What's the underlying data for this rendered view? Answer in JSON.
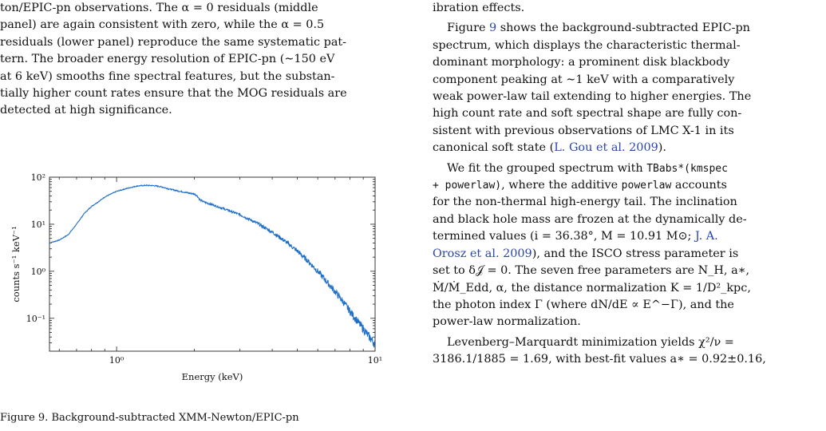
{
  "left_text": {
    "line1": "ton/EPIC-pn observations. The α = 0 residuals (middle",
    "line2": "panel) are again consistent with zero, while the α = 0.5",
    "line3": "residuals (lower panel) reproduce the same systematic pat-",
    "line4": "tern. The broader energy resolution of EPIC-pn (∼150 eV",
    "line5": "at 6 keV) smooths fine spectral features, but the substan-",
    "line6": "tially higher count rates ensure that the MOG residuals are",
    "line7": "detected at high significance."
  },
  "caption": "Figure 9. Background-subtracted XMM-Newton/EPIC-pn",
  "right_text": {
    "intro": "ibration effects.",
    "p1_l1": "Figure ",
    "p1_fig_ref": "9",
    "p1_l1b": " shows the background-subtracted EPIC-pn",
    "p1_l2": "spectrum, which displays the characteristic thermal-",
    "p1_l3": "dominant morphology: a prominent disk blackbody",
    "p1_l4": "component peaking at ∼1 keV with a comparatively",
    "p1_l5": "weak power-law tail extending to higher energies. The",
    "p1_l6": "high count rate and soft spectral shape are fully con-",
    "p1_l7": "sistent with previous observations of LMC X-1 in its",
    "p1_l8": "canonical soft state (",
    "p1_cite": "L. Gou et al. 2009",
    "p1_l8b": ").",
    "p2_l1a": "We fit the grouped spectrum with ",
    "p2_code1": "TBabs*(kmspec",
    "p2_code2": "+ powerlaw)",
    "p2_l2": ", where the additive ",
    "p2_code3": "powerlaw",
    "p2_l2b": " accounts",
    "p2_l3": "for the non-thermal high-energy tail. The inclination",
    "p2_l4": "and black hole mass are frozen at the dynamically de-",
    "p2_l5a": "termined values (i = 36.38°, M = 10.91 M⊙; ",
    "p2_cite_a": "J. A.",
    "p2_cite_b": "Orosz et al. 2009",
    "p2_l6b": "), and the ISCO stress parameter is",
    "p2_l7": "set to δ𝒥 = 0. The seven free parameters are N_H, a∗,",
    "p2_l8": "Ṁ/Ṁ_Edd, α, the distance normalization K = 1/D²_kpc,",
    "p2_l9": "the photon index Γ (where dN/dE ∝ E^−Γ), and the",
    "p2_l10": "power-law normalization.",
    "p3_l1": "Levenberg–Marquardt minimization yields χ²/ν =",
    "p3_l2": "3186.1/1885 = 1.69, with best-fit values a∗ = 0.92±0.16,"
  },
  "chart_data": {
    "type": "line",
    "title": "",
    "xlabel": "Energy (keV)",
    "ylabel": "counts s⁻¹ keV⁻¹",
    "xscale": "log",
    "yscale": "log",
    "xlim": [
      0.55,
      10
    ],
    "ylim": [
      0.02,
      100
    ],
    "x_ticks": [
      "10⁰",
      "10¹"
    ],
    "y_ticks": [
      "10⁻¹",
      "10⁰",
      "10¹",
      "10²"
    ],
    "line_color": "#1f6fc8",
    "series": [
      {
        "x": [
          0.55,
          0.6,
          0.65,
          0.7,
          0.75,
          0.8,
          0.85,
          0.9,
          1.0,
          1.1,
          1.2,
          1.3,
          1.4,
          1.5,
          1.6,
          1.7,
          1.8,
          1.9,
          2.0,
          2.05,
          2.1,
          2.2,
          2.3,
          2.5,
          3.0,
          3.5,
          4.0,
          4.5,
          5.0,
          5.5,
          6.0,
          6.5,
          7.0,
          7.5,
          8.0,
          8.5,
          9.0,
          9.5,
          10.0
        ],
        "y": [
          4.0,
          4.6,
          6.0,
          10.0,
          17.0,
          24.0,
          30.0,
          38.0,
          50.0,
          58.0,
          65.0,
          67.0,
          66.0,
          62.0,
          56.0,
          52.0,
          49.0,
          46.0,
          44.0,
          40.0,
          33.0,
          29.0,
          27.0,
          23.0,
          16.0,
          10.5,
          6.8,
          4.3,
          2.7,
          1.65,
          1.0,
          0.6,
          0.37,
          0.23,
          0.14,
          0.09,
          0.06,
          0.04,
          0.028
        ]
      }
    ]
  }
}
